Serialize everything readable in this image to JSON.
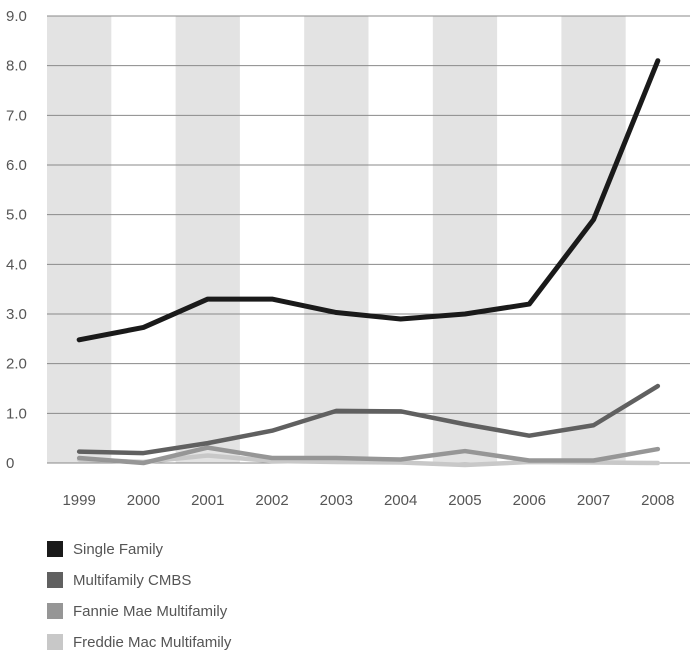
{
  "chart_data": {
    "type": "line",
    "categories": [
      "1999",
      "2000",
      "2001",
      "2002",
      "2003",
      "2004",
      "2005",
      "2006",
      "2007",
      "2008"
    ],
    "ylim": [
      0,
      9
    ],
    "yticks": [
      "0",
      "1.0",
      "2.0",
      "3.0",
      "4.0",
      "5.0",
      "6.0",
      "7.0",
      "8.0",
      "9.0"
    ],
    "grid": "horizontal",
    "column_banding": "alternating-gray",
    "legend_position": "bottom-left",
    "series": [
      {
        "name": "Single Family",
        "color": "#1a1a1a",
        "values": [
          2.48,
          2.73,
          3.3,
          3.3,
          3.03,
          2.9,
          3.0,
          3.2,
          4.9,
          8.1
        ]
      },
      {
        "name": "Multifamily CMBS",
        "color": "#606060",
        "values": [
          0.23,
          0.2,
          0.4,
          0.65,
          1.05,
          1.04,
          0.78,
          0.55,
          0.76,
          1.55
        ]
      },
      {
        "name": "Fannie Mae Multifamily",
        "color": "#969696",
        "values": [
          0.1,
          0.0,
          0.31,
          0.1,
          0.1,
          0.07,
          0.24,
          0.05,
          0.05,
          0.28
        ]
      },
      {
        "name": "Freddie Mac Multifamily",
        "color": "#c8c8c8",
        "values": [
          0.07,
          0.02,
          0.15,
          0.04,
          0.02,
          0.01,
          -0.04,
          0.02,
          0.01,
          0.0
        ]
      }
    ]
  }
}
